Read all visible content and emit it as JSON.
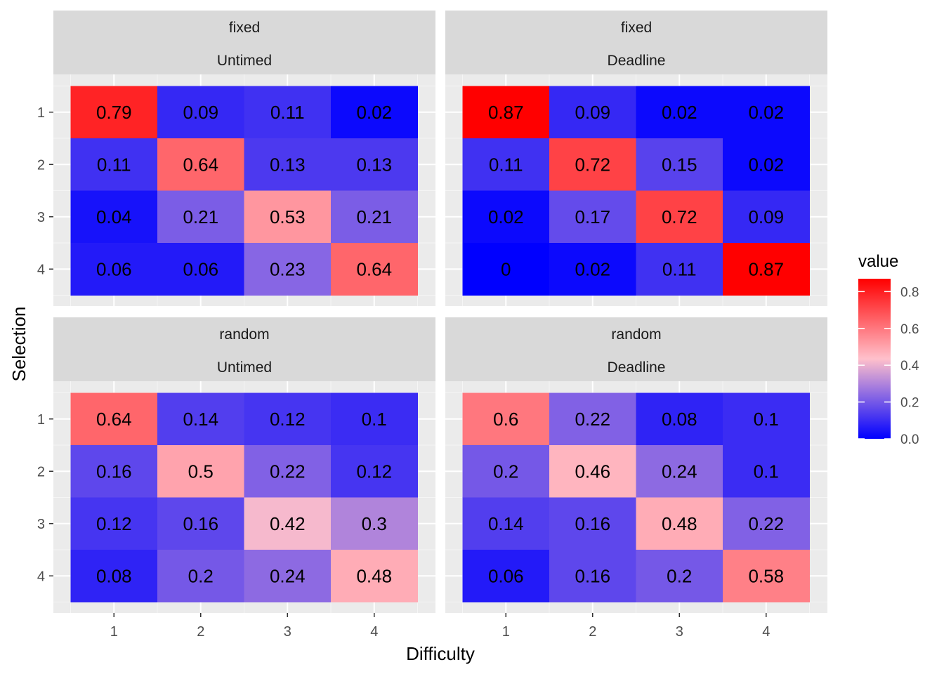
{
  "chart_data": {
    "type": "heatmap",
    "xlabel": "Difficulty",
    "ylabel": "Selection",
    "x_categories": [
      "1",
      "2",
      "3",
      "4"
    ],
    "y_categories": [
      "1",
      "2",
      "3",
      "4"
    ],
    "legend": {
      "title": "value",
      "position": "right",
      "range": [
        0,
        0.87
      ],
      "ticks": [
        0.0,
        0.2,
        0.4,
        0.6,
        0.8
      ],
      "tick_labels": [
        "0.0",
        "0.2",
        "0.4",
        "0.6",
        "0.8"
      ],
      "low_color": "#0000FF",
      "mid_color": "#FFC0CB",
      "high_color": "#FF0000",
      "midpoint": 0.435
    },
    "facets": [
      {
        "row_label": "fixed",
        "col_label": "Untimed",
        "values": [
          [
            0.79,
            0.09,
            0.11,
            0.02
          ],
          [
            0.11,
            0.64,
            0.13,
            0.13
          ],
          [
            0.04,
            0.21,
            0.53,
            0.21
          ],
          [
            0.06,
            0.06,
            0.23,
            0.64
          ]
        ],
        "labels": [
          [
            "0.79",
            "0.09",
            "0.11",
            "0.02"
          ],
          [
            "0.11",
            "0.64",
            "0.13",
            "0.13"
          ],
          [
            "0.04",
            "0.21",
            "0.53",
            "0.21"
          ],
          [
            "0.06",
            "0.06",
            "0.23",
            "0.64"
          ]
        ]
      },
      {
        "row_label": "fixed",
        "col_label": "Deadline",
        "values": [
          [
            0.87,
            0.09,
            0.02,
            0.02
          ],
          [
            0.11,
            0.72,
            0.15,
            0.02
          ],
          [
            0.02,
            0.17,
            0.72,
            0.09
          ],
          [
            0,
            0.02,
            0.11,
            0.87
          ]
        ],
        "labels": [
          [
            "0.87",
            "0.09",
            "0.02",
            "0.02"
          ],
          [
            "0.11",
            "0.72",
            "0.15",
            "0.02"
          ],
          [
            "0.02",
            "0.17",
            "0.72",
            "0.09"
          ],
          [
            "0",
            "0.02",
            "0.11",
            "0.87"
          ]
        ]
      },
      {
        "row_label": "random",
        "col_label": "Untimed",
        "values": [
          [
            0.64,
            0.14,
            0.12,
            0.1
          ],
          [
            0.16,
            0.5,
            0.22,
            0.12
          ],
          [
            0.12,
            0.16,
            0.42,
            0.3
          ],
          [
            0.08,
            0.2,
            0.24,
            0.48
          ]
        ],
        "labels": [
          [
            "0.64",
            "0.14",
            "0.12",
            "0.1"
          ],
          [
            "0.16",
            "0.5",
            "0.22",
            "0.12"
          ],
          [
            "0.12",
            "0.16",
            "0.42",
            "0.3"
          ],
          [
            "0.08",
            "0.2",
            "0.24",
            "0.48"
          ]
        ]
      },
      {
        "row_label": "random",
        "col_label": "Deadline",
        "values": [
          [
            0.6,
            0.22,
            0.08,
            0.1
          ],
          [
            0.2,
            0.46,
            0.24,
            0.1
          ],
          [
            0.14,
            0.16,
            0.48,
            0.22
          ],
          [
            0.06,
            0.16,
            0.2,
            0.58
          ]
        ],
        "labels": [
          [
            "0.6",
            "0.22",
            "0.08",
            "0.1"
          ],
          [
            "0.2",
            "0.46",
            "0.24",
            "0.1"
          ],
          [
            "0.14",
            "0.16",
            "0.48",
            "0.22"
          ],
          [
            "0.06",
            "0.16",
            "0.2",
            "0.58"
          ]
        ]
      }
    ]
  }
}
